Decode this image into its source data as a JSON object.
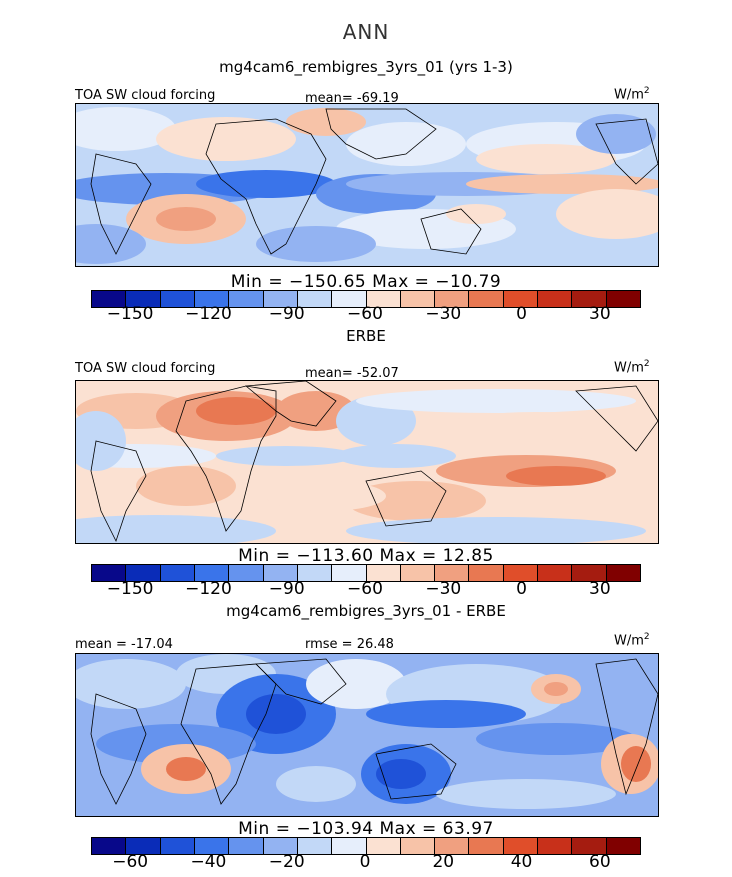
{
  "title": "ANN",
  "colorbar_colors": [
    "#08088a",
    "#0a2cb8",
    "#1f52d8",
    "#3a74ea",
    "#6593ee",
    "#93b3f2",
    "#c2d8f7",
    "#e6eefb",
    "#fbe1d2",
    "#f7c3a8",
    "#f0a080",
    "#e87852",
    "#e04e2a",
    "#c8301a",
    "#a51c10",
    "#800000"
  ],
  "chart_data": [
    {
      "type": "heatmap",
      "title": "mg4cam6_rembigres_3yrs_01 (yrs 1-3)",
      "variable": "TOA SW cloud forcing",
      "units_prefix": "W/m",
      "units_sup": "2",
      "mean_text": "mean= -69.19",
      "min": -150.65,
      "max": -10.79,
      "minmax_text": "Min = −150.65 Max = −10.79",
      "colorbar_ticks": [
        "−150",
        "−120",
        "−90",
        "−60",
        "−30",
        "0",
        "30"
      ],
      "colorbar_range": [
        -165,
        45
      ]
    },
    {
      "type": "heatmap",
      "title": "ERBE",
      "variable": "TOA SW cloud forcing",
      "units_prefix": "W/m",
      "units_sup": "2",
      "mean_text": "mean= -52.07",
      "min": -113.6,
      "max": 12.85,
      "minmax_text": "Min = −113.60 Max =  12.85",
      "colorbar_ticks": [
        "−150",
        "−120",
        "−90",
        "−60",
        "−30",
        "0",
        "30"
      ],
      "colorbar_range": [
        -165,
        45
      ]
    },
    {
      "type": "heatmap",
      "title": "mg4cam6_rembigres_3yrs_01 - ERBE",
      "variable": "",
      "units_prefix": "W/m",
      "units_sup": "2",
      "mean_text": "mean = -17.04",
      "rmse_text": "rmse =  26.48",
      "min": -103.94,
      "max": 63.97,
      "minmax_text": "Min = −103.94 Max =  63.97",
      "colorbar_ticks": [
        "−60",
        "−40",
        "−20",
        "0",
        "20",
        "40",
        "60"
      ],
      "colorbar_range": [
        -70,
        70
      ]
    }
  ]
}
